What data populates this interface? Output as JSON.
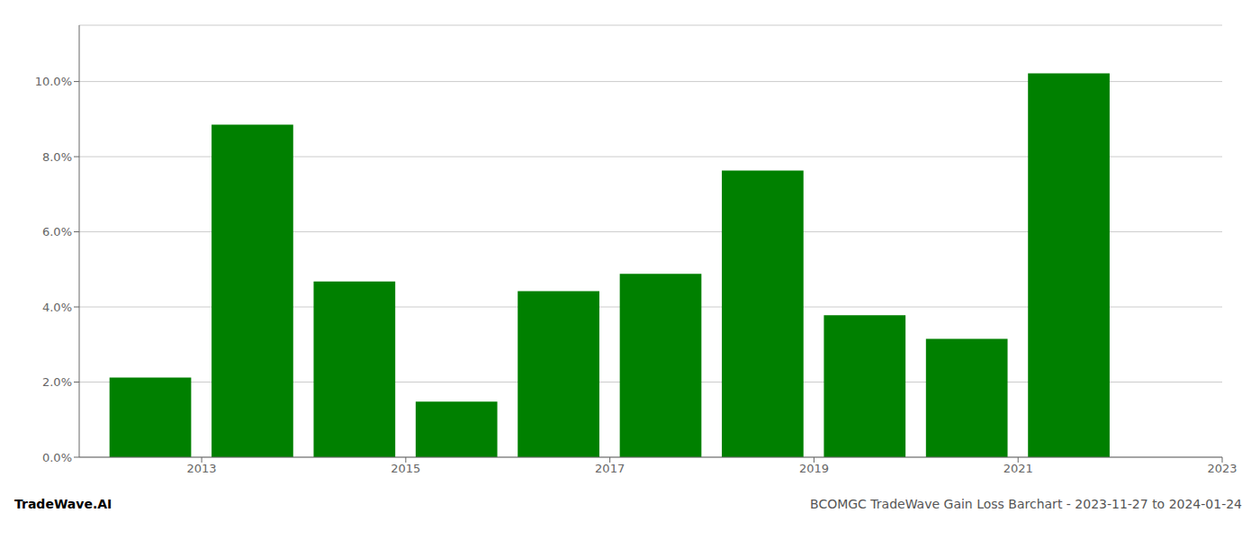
{
  "chart_data": {
    "type": "bar",
    "x": [
      2012.5,
      2013.5,
      2014.5,
      2015.5,
      2016.5,
      2017.5,
      2018.5,
      2019.5,
      2020.5,
      2021.5
    ],
    "values": [
      0.0212,
      0.0885,
      0.0468,
      0.0148,
      0.0442,
      0.0488,
      0.0763,
      0.0378,
      0.0315,
      0.1022
    ],
    "color": "#008000",
    "xlim": [
      2011.8,
      2023.0
    ],
    "xticks": [
      2013,
      2015,
      2017,
      2019,
      2021,
      2023
    ],
    "ylim": [
      0,
      0.115
    ],
    "yticks": [
      {
        "value": 0.0,
        "label": "0.0%"
      },
      {
        "value": 0.02,
        "label": "2.0%"
      },
      {
        "value": 0.04,
        "label": "4.0%"
      },
      {
        "value": 0.06,
        "label": "6.0%"
      },
      {
        "value": 0.08,
        "label": "8.0%"
      },
      {
        "value": 0.1,
        "label": "10.0%"
      }
    ],
    "grid": true,
    "annotations": [
      "TradeWave.AI",
      "BCOMGC TradeWave Gain Loss Barchart - 2023-11-27 to 2024-01-24"
    ]
  }
}
